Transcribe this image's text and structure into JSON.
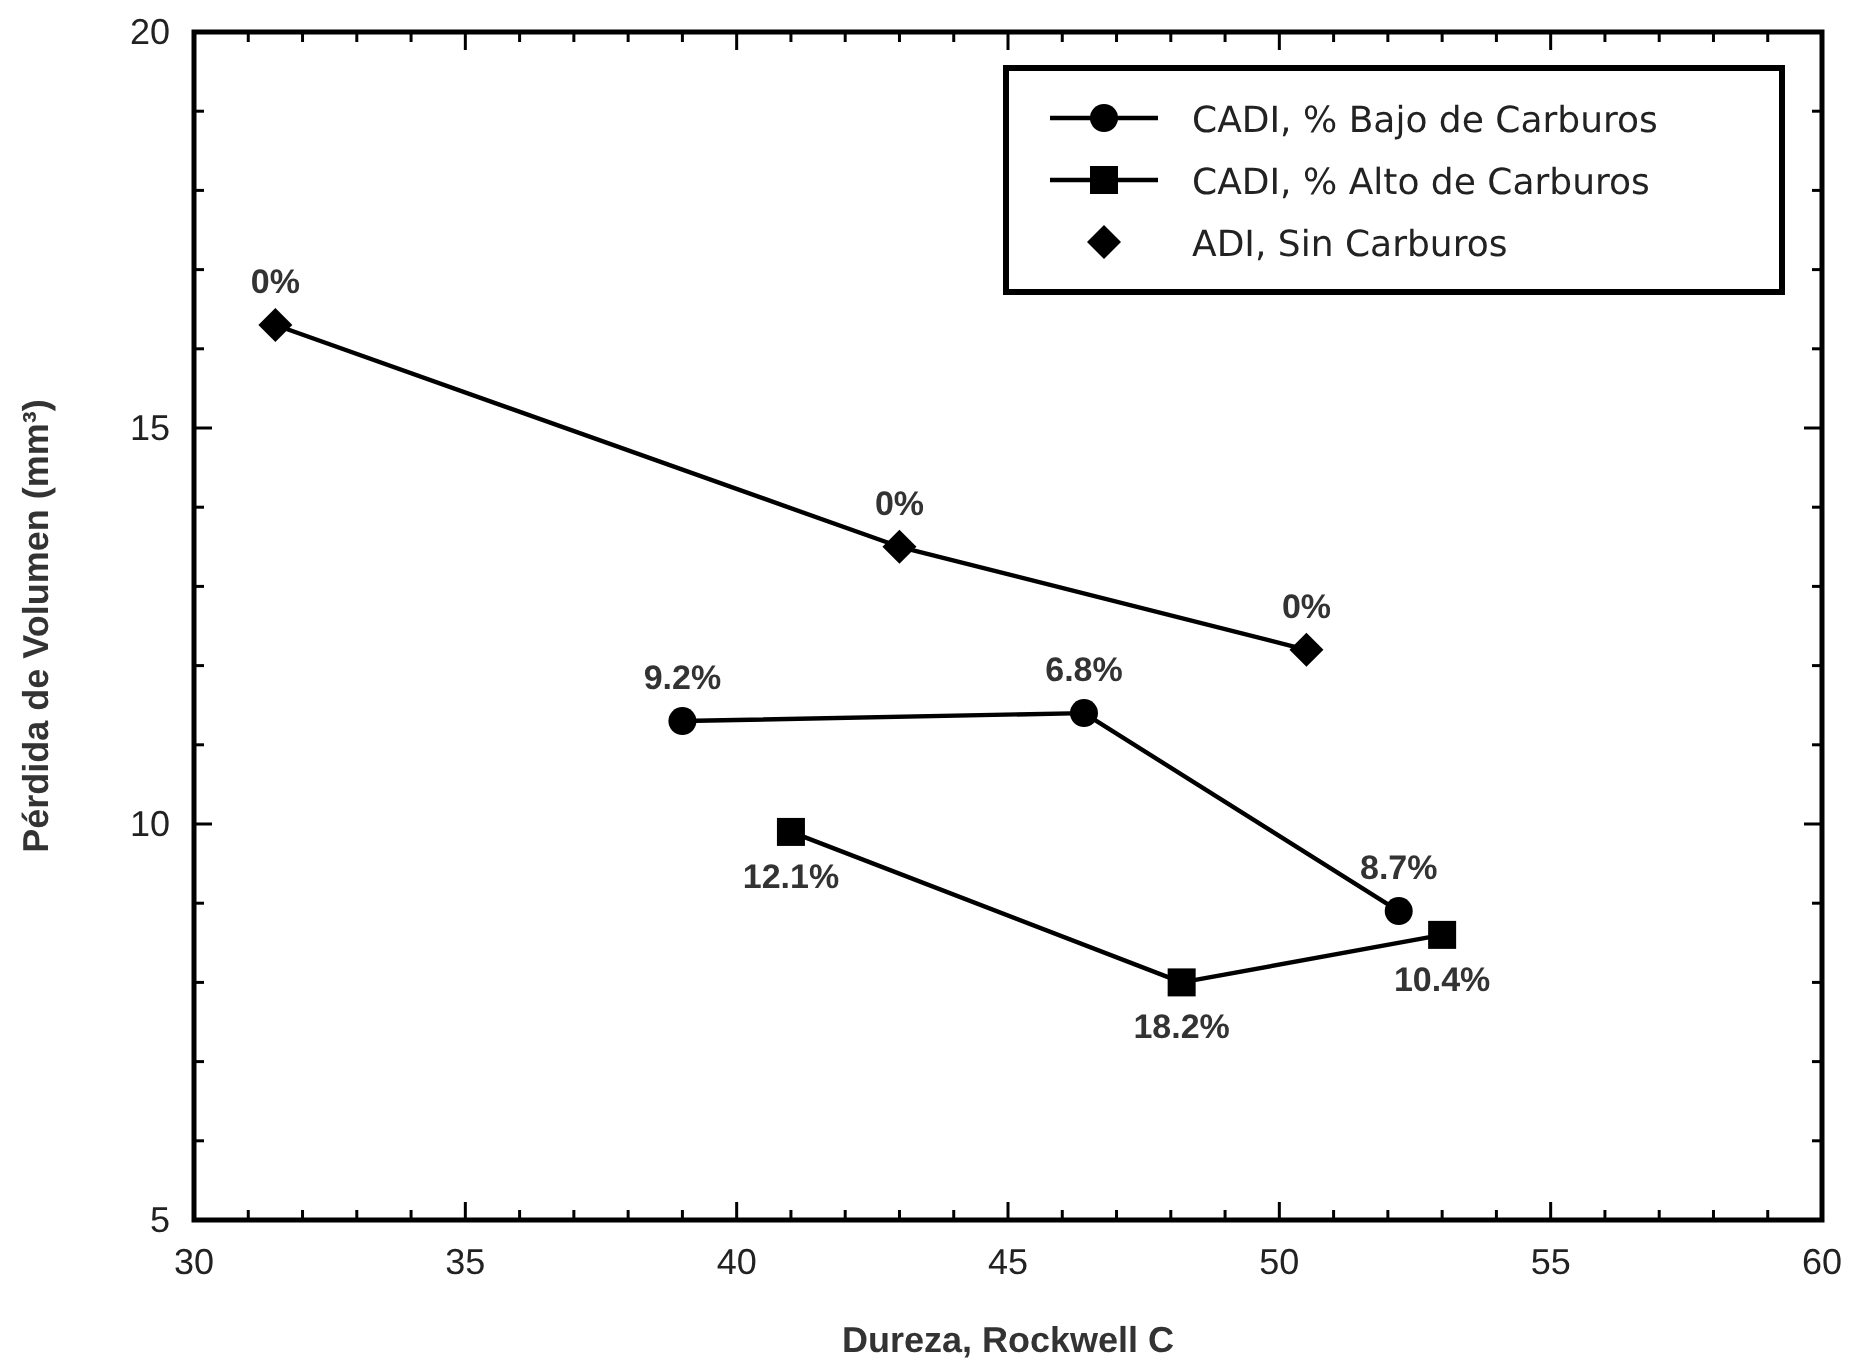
{
  "chart_data": {
    "type": "line",
    "xlabel": "Dureza, Rockwell C",
    "ylabel": "Pérdida de Volumen (mm³)",
    "xlim": [
      30,
      60
    ],
    "ylim": [
      5,
      20
    ],
    "xticks": [
      30,
      {
        "value": 31,
        "label": null
      },
      {
        "value": 32,
        "label": null
      },
      {
        "value": 33,
        "label": null
      },
      {
        "value": 34,
        "label": null
      },
      35,
      {
        "value": 36,
        "label": null
      },
      {
        "value": 37,
        "label": null
      },
      {
        "value": 38,
        "label": null
      },
      {
        "value": 39,
        "label": null
      },
      40,
      {
        "value": 41,
        "label": null
      },
      {
        "value": 42,
        "label": null
      },
      {
        "value": 43,
        "label": null
      },
      {
        "value": 44,
        "label": null
      },
      45,
      {
        "value": 46,
        "label": null
      },
      {
        "value": 47,
        "label": null
      },
      {
        "value": 48,
        "label": null
      },
      {
        "value": 49,
        "label": null
      },
      50,
      {
        "value": 51,
        "label": null
      },
      {
        "value": 52,
        "label": null
      },
      {
        "value": 53,
        "label": null
      },
      {
        "value": 54,
        "label": null
      },
      55,
      {
        "value": 56,
        "label": null
      },
      {
        "value": 57,
        "label": null
      },
      {
        "value": 58,
        "label": null
      },
      {
        "value": 59,
        "label": null
      },
      60
    ],
    "yticks": [
      5,
      {
        "value": 6,
        "label": null
      },
      {
        "value": 7,
        "label": null
      },
      {
        "value": 8,
        "label": null
      },
      {
        "value": 9,
        "label": null
      },
      10,
      {
        "value": 11,
        "label": null
      },
      {
        "value": 12,
        "label": null
      },
      {
        "value": 13,
        "label": null
      },
      {
        "value": 14,
        "label": null
      },
      15,
      {
        "value": 16,
        "label": null
      },
      {
        "value": 17,
        "label": null
      },
      {
        "value": 18,
        "label": null
      },
      {
        "value": 19,
        "label": null
      },
      20
    ],
    "grid": false,
    "legend": "top right",
    "line_style": "solid",
    "series": [
      {
        "name": "CADI, % Bajo de Carburos",
        "color": "#000000",
        "marker": "circle",
        "x": [
          39.0,
          46.4,
          52.2
        ],
        "values": [
          11.3,
          11.4,
          8.9
        ]
      },
      {
        "name": "CADI, % Alto de Carburos",
        "color": "#000000",
        "marker": "square",
        "x": [
          41.0,
          48.2,
          53.0
        ],
        "values": [
          9.9,
          8.0,
          8.6
        ]
      },
      {
        "name": "ADI, Sin Carburos",
        "color": "#000000",
        "marker": "diamond",
        "x": [
          31.5,
          43.0,
          50.5
        ],
        "values": [
          16.3,
          13.5,
          12.2
        ]
      }
    ],
    "annotations": [
      {
        "text": "9.2%",
        "x": 39.0,
        "y": 11.3
      },
      {
        "text": "6.8%",
        "x": 46.4,
        "y": 11.4
      },
      {
        "text": "8.7%",
        "x": 52.2,
        "y": 8.9
      },
      {
        "text": "12.1%",
        "x": 41.0,
        "y": 9.9
      },
      {
        "text": "18.2%",
        "x": 48.2,
        "y": 8.0
      },
      {
        "text": "10.4%",
        "x": 53.0,
        "y": 8.6
      },
      {
        "text": "0%",
        "x": 31.5,
        "y": 16.3
      },
      {
        "text": "0%",
        "x": 43.0,
        "y": 13.5
      },
      {
        "text": "0%",
        "x": 50.5,
        "y": 12.2
      }
    ]
  }
}
